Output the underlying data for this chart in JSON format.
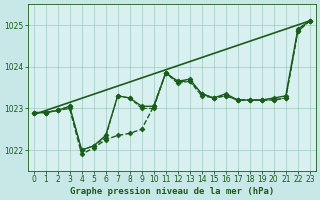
{
  "background_color": "#c8e8e8",
  "plot_bg_color": "#d8f0f0",
  "grid_color": "#a0c8c0",
  "line_color": "#1a5c1a",
  "title": "Graphe pression niveau de la mer (hPa)",
  "title_fontsize": 6.5,
  "xlim": [
    -0.5,
    23.5
  ],
  "ylim": [
    1021.5,
    1025.5
  ],
  "yticks": [
    1022,
    1023,
    1024,
    1025
  ],
  "xticks": [
    0,
    1,
    2,
    3,
    4,
    5,
    6,
    7,
    8,
    9,
    10,
    11,
    12,
    13,
    14,
    15,
    16,
    17,
    18,
    19,
    20,
    21,
    22,
    23
  ],
  "series": [
    {
      "name": "straight_line",
      "x": [
        0,
        23
      ],
      "y": [
        1022.85,
        1025.1
      ],
      "marker": null,
      "linestyle": "-",
      "linewidth": 1.2
    },
    {
      "name": "line1_dashed",
      "x": [
        0,
        1,
        2,
        3,
        4,
        5,
        6,
        7,
        8,
        9,
        10,
        11,
        12,
        13,
        14,
        15,
        16,
        17,
        18,
        19,
        20,
        21,
        22,
        23
      ],
      "y": [
        1022.9,
        1022.9,
        1022.95,
        1023.0,
        1021.9,
        1022.05,
        1022.25,
        1022.35,
        1022.4,
        1022.5,
        1023.05,
        1023.85,
        1023.65,
        1023.65,
        1023.35,
        1023.25,
        1023.3,
        1023.2,
        1023.2,
        1023.2,
        1023.2,
        1023.25,
        1024.85,
        1025.1
      ],
      "marker": "D",
      "markersize": 2.5,
      "linestyle": "--",
      "linewidth": 1.0
    },
    {
      "name": "line2_solid",
      "x": [
        0,
        1,
        2,
        3,
        4,
        5,
        6,
        7,
        8,
        9,
        10,
        11,
        12,
        13,
        14,
        15,
        16,
        17,
        18,
        19,
        20,
        21,
        22,
        23
      ],
      "y": [
        1022.9,
        1022.9,
        1022.95,
        1023.05,
        1022.0,
        1022.1,
        1022.35,
        1023.3,
        1023.25,
        1023.05,
        1023.05,
        1023.85,
        1023.65,
        1023.7,
        1023.35,
        1023.25,
        1023.35,
        1023.2,
        1023.2,
        1023.2,
        1023.25,
        1023.3,
        1024.9,
        1025.1
      ],
      "marker": "D",
      "markersize": 2.5,
      "linestyle": "-",
      "linewidth": 1.0
    },
    {
      "name": "line3_dashed2",
      "x": [
        0,
        1,
        2,
        3,
        4,
        5,
        6,
        7,
        8,
        9,
        10,
        11,
        12,
        13,
        14,
        15,
        16,
        17,
        18,
        19,
        20,
        21,
        22,
        23
      ],
      "y": [
        1022.9,
        1022.9,
        1022.95,
        1023.05,
        1022.0,
        1022.1,
        1022.3,
        1023.3,
        1023.25,
        1023.0,
        1023.0,
        1023.85,
        1023.6,
        1023.65,
        1023.3,
        1023.25,
        1023.3,
        1023.2,
        1023.2,
        1023.2,
        1023.2,
        1023.25,
        1024.85,
        1025.1
      ],
      "marker": "D",
      "markersize": 2.5,
      "linestyle": "--",
      "linewidth": 0.8
    }
  ]
}
